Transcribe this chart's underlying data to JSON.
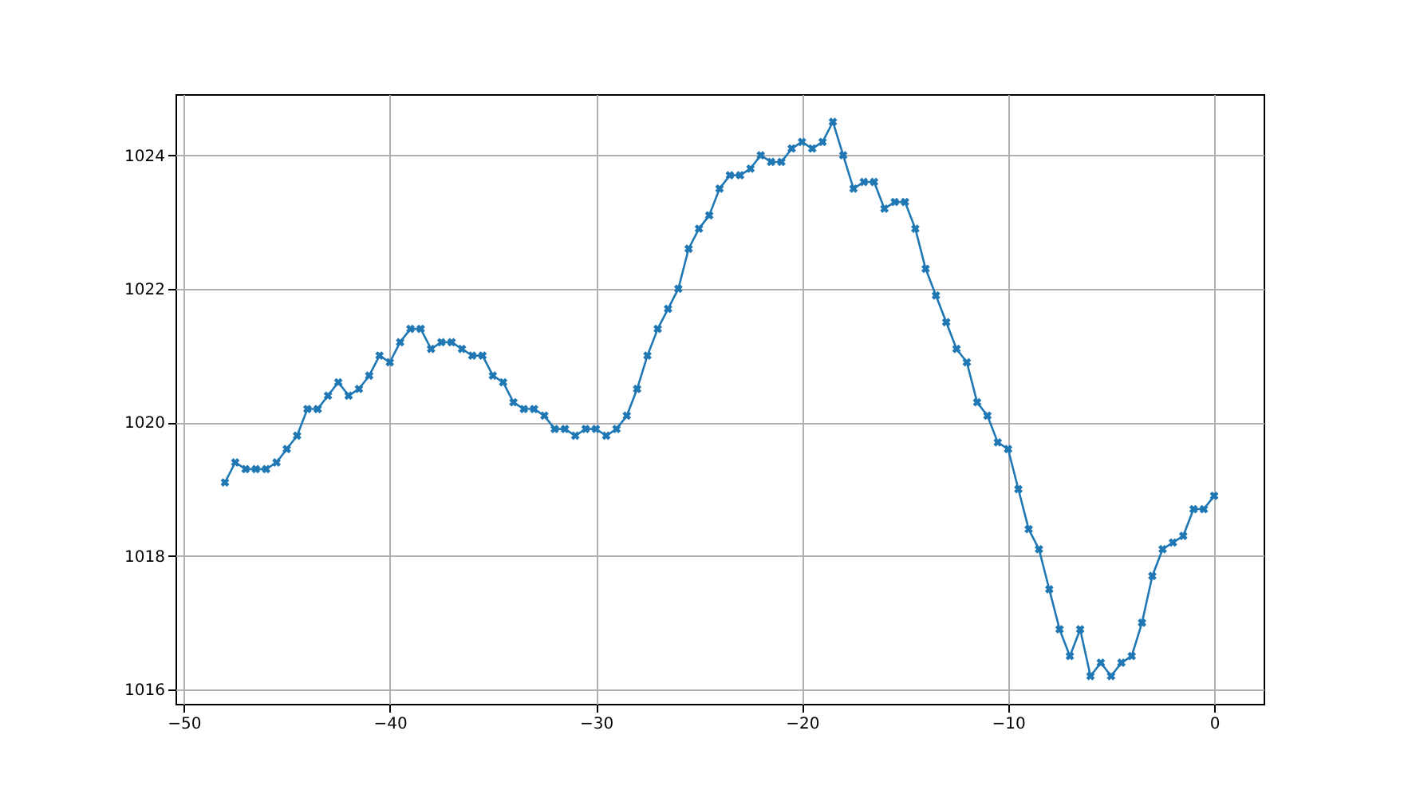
{
  "chart_data": {
    "type": "line",
    "x": [
      -48,
      -47.5,
      -47,
      -46.5,
      -46,
      -45.5,
      -45,
      -44.5,
      -44,
      -43.5,
      -43,
      -42.5,
      -42,
      -41.5,
      -41,
      -40.5,
      -40,
      -39.5,
      -39,
      -38.5,
      -38,
      -37.5,
      -37,
      -36.5,
      -36,
      -35.5,
      -35,
      -34.5,
      -34,
      -33.5,
      -33,
      -32.5,
      -32,
      -31.5,
      -31,
      -30.5,
      -30,
      -29.5,
      -29,
      -28.5,
      -28,
      -27.5,
      -27,
      -26.5,
      -26,
      -25.5,
      -25,
      -24.5,
      -24,
      -23.5,
      -23,
      -22.5,
      -22,
      -21.5,
      -21,
      -20.5,
      -20,
      -19.5,
      -19,
      -18.5,
      -18,
      -17.5,
      -17,
      -16.5,
      -16,
      -15.5,
      -15,
      -14.5,
      -14,
      -13.5,
      -13,
      -12.5,
      -12,
      -11.5,
      -11,
      -10.5,
      -10,
      -9.5,
      -9,
      -8.5,
      -8,
      -7.5,
      -7,
      -6.5,
      -6,
      -5.5,
      -5,
      -4.5,
      -4,
      -3.5,
      -3,
      -2.5,
      -2,
      -1.5,
      -1,
      -0.5,
      0
    ],
    "series": [
      {
        "color": "#1f77b4",
        "values": [
          1019.1,
          1019.4,
          1019.3,
          1019.3,
          1019.3,
          1019.4,
          1019.6,
          1019.8,
          1020.2,
          1020.2,
          1020.4,
          1020.6,
          1020.4,
          1020.5,
          1020.7,
          1021.0,
          1020.9,
          1021.2,
          1021.4,
          1021.4,
          1021.1,
          1021.2,
          1021.2,
          1021.1,
          1021.0,
          1021.0,
          1020.7,
          1020.6,
          1020.3,
          1020.2,
          1020.2,
          1020.1,
          1019.9,
          1019.9,
          1019.8,
          1019.9,
          1019.9,
          1019.8,
          1019.9,
          1020.1,
          1020.5,
          1021.0,
          1021.4,
          1021.7,
          1022.0,
          1022.6,
          1022.9,
          1023.1,
          1023.5,
          1023.7,
          1023.7,
          1023.8,
          1024.0,
          1023.9,
          1023.9,
          1024.1,
          1024.2,
          1024.1,
          1024.2,
          1024.5,
          1024.0,
          1023.5,
          1023.6,
          1023.6,
          1023.2,
          1023.3,
          1023.3,
          1022.9,
          1022.3,
          1021.9,
          1021.5,
          1021.1,
          1020.9,
          1020.3,
          1020.1,
          1019.7,
          1019.6,
          1019.0,
          1018.4,
          1018.1,
          1017.5,
          1016.9,
          1016.5,
          1016.9,
          1016.2,
          1016.4,
          1016.2,
          1016.4,
          1016.5,
          1017.0,
          1017.7,
          1018.1,
          1018.2,
          1018.3,
          1018.7,
          1018.7,
          1018.9
        ]
      }
    ],
    "xlim": [
      -50.4,
      2.4
    ],
    "xticks": [
      -50,
      -40,
      -30,
      -20,
      -10,
      0
    ],
    "ylim": [
      1015.785,
      1024.915
    ],
    "yticks": [
      1016,
      1018,
      1020,
      1022,
      1024
    ],
    "grid": true,
    "marker": "cross",
    "line_style": "solid"
  }
}
